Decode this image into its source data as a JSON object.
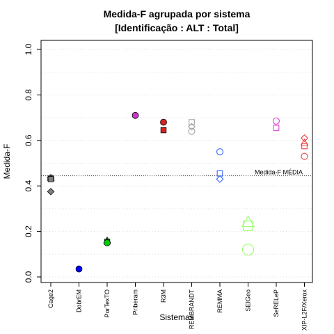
{
  "chart_data": {
    "type": "scatter",
    "title_line1": "Medida-F agrupada por sistema",
    "title_line2": "[Identificação : ALT : Total]",
    "xlabel": "Sistemas",
    "ylabel": "Medida-F",
    "ylim": [
      0.0,
      1.0
    ],
    "yticks": [
      "0.0",
      "0.2",
      "0.4",
      "0.6",
      "0.8",
      "1.0"
    ],
    "grid": "horizontal dotted",
    "categories": [
      "Cage2",
      "DobrEM",
      "PorTexTO",
      "Priberam",
      "R3M",
      "REMBRANDT",
      "REMMA",
      "SEIGeo",
      "SeRELeP",
      "XIP-L2F/Xerox"
    ],
    "mean_line": {
      "value": 0.445,
      "label": "Medida-F MÉDIA"
    },
    "points": [
      {
        "category": "Cage2",
        "value": 0.435,
        "shape": "circle",
        "color": "#808080",
        "filled": true
      },
      {
        "category": "Cage2",
        "value": 0.435,
        "shape": "triangle",
        "color": "#808080",
        "filled": true
      },
      {
        "category": "Cage2",
        "value": 0.43,
        "shape": "square",
        "color": "#808080",
        "filled": true
      },
      {
        "category": "Cage2",
        "value": 0.375,
        "shape": "diamond",
        "color": "#808080",
        "filled": true
      },
      {
        "category": "DobrEM",
        "value": 0.035,
        "shape": "circle",
        "color": "#0000ff",
        "filled": true
      },
      {
        "category": "PorTexTO",
        "value": 0.16,
        "shape": "triangle",
        "color": "#00cc00",
        "filled": true
      },
      {
        "category": "PorTexTO",
        "value": 0.155,
        "shape": "square",
        "color": "#00cc00",
        "filled": true
      },
      {
        "category": "PorTexTO",
        "value": 0.15,
        "shape": "circle",
        "color": "#00cc00",
        "filled": true
      },
      {
        "category": "Priberam",
        "value": 0.71,
        "shape": "circle",
        "color": "#cc33cc",
        "filled": true
      },
      {
        "category": "R3M",
        "value": 0.68,
        "shape": "circle",
        "color": "#dd2222",
        "filled": true
      },
      {
        "category": "R3M",
        "value": 0.645,
        "shape": "square",
        "color": "#dd2222",
        "filled": true
      },
      {
        "category": "REMBRANDT",
        "value": 0.68,
        "shape": "square",
        "color": "#a0a0a0",
        "filled": false
      },
      {
        "category": "REMBRANDT",
        "value": 0.66,
        "shape": "diamond",
        "color": "#a0a0a0",
        "filled": false
      },
      {
        "category": "REMBRANDT",
        "value": 0.64,
        "shape": "circle",
        "color": "#a0a0a0",
        "filled": false
      },
      {
        "category": "REMMA",
        "value": 0.55,
        "shape": "circle",
        "color": "#3366ff",
        "filled": false
      },
      {
        "category": "REMMA",
        "value": 0.455,
        "shape": "square",
        "color": "#3366ff",
        "filled": false
      },
      {
        "category": "REMMA",
        "value": 0.43,
        "shape": "diamond",
        "color": "#3366ff",
        "filled": false
      },
      {
        "category": "SEIGeo",
        "value": 0.24,
        "shape": "triangle",
        "color": "#99ff66",
        "filled": false,
        "large": true
      },
      {
        "category": "SEIGeo",
        "value": 0.225,
        "shape": "square",
        "color": "#99ff66",
        "filled": false,
        "large": true
      },
      {
        "category": "SEIGeo",
        "value": 0.12,
        "shape": "circle",
        "color": "#99ff66",
        "filled": false,
        "large": true
      },
      {
        "category": "SeRELeP",
        "value": 0.685,
        "shape": "circle",
        "color": "#dd44dd",
        "filled": false
      },
      {
        "category": "SeRELeP",
        "value": 0.655,
        "shape": "square",
        "color": "#dd44dd",
        "filled": false
      },
      {
        "category": "XIP-L2F/Xerox",
        "value": 0.61,
        "shape": "diamond",
        "color": "#ee4444",
        "filled": false
      },
      {
        "category": "XIP-L2F/Xerox",
        "value": 0.59,
        "shape": "triangle",
        "color": "#ee4444",
        "filled": false
      },
      {
        "category": "XIP-L2F/Xerox",
        "value": 0.575,
        "shape": "square",
        "color": "#ee4444",
        "filled": false
      },
      {
        "category": "XIP-L2F/Xerox",
        "value": 0.53,
        "shape": "circle",
        "color": "#ee4444",
        "filled": false
      }
    ]
  }
}
